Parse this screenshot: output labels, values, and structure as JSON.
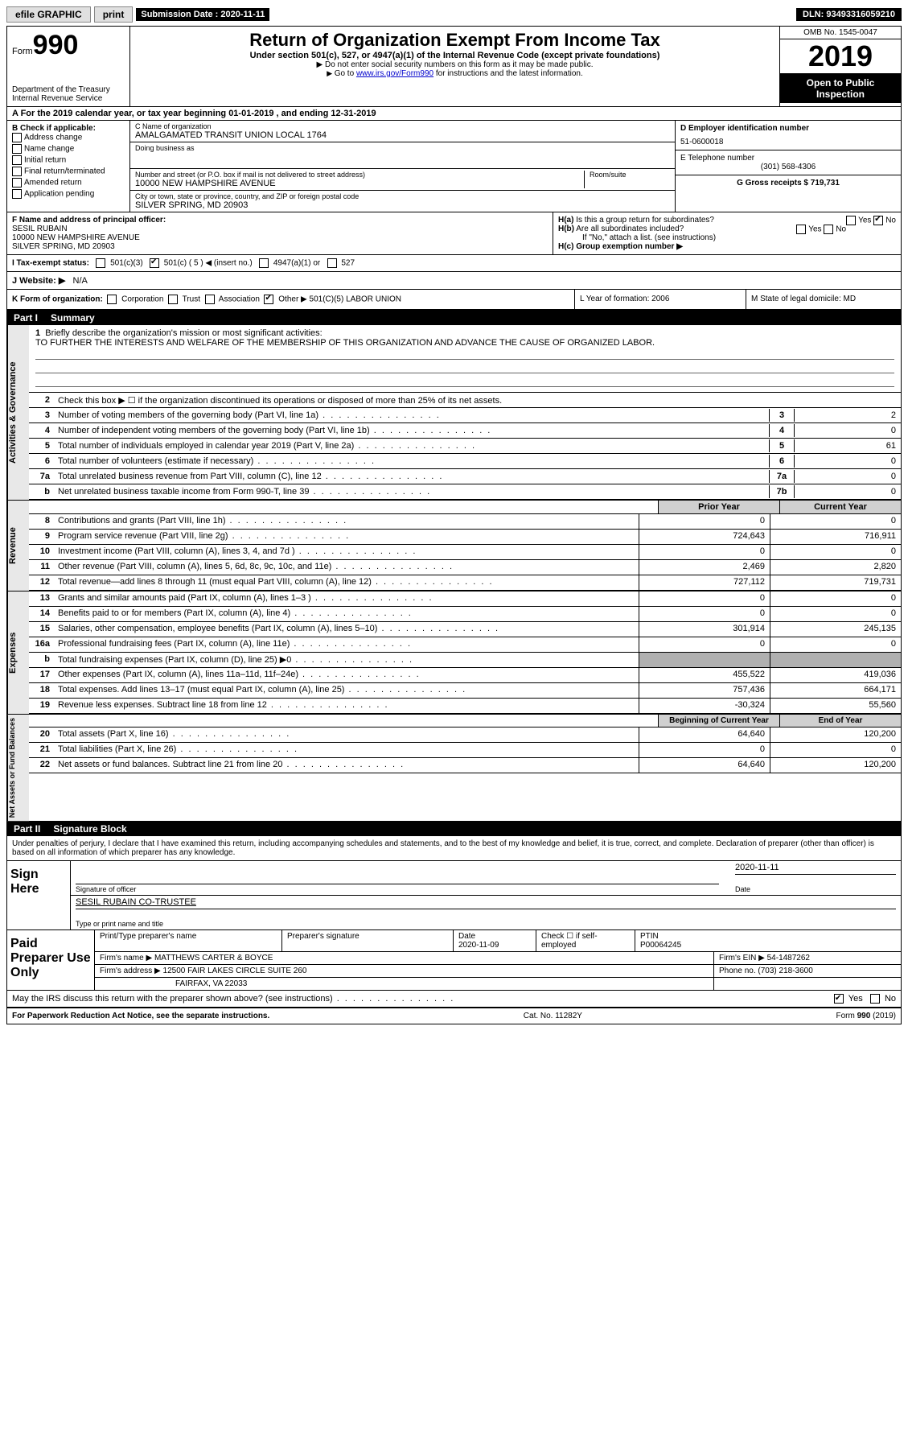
{
  "topbar": {
    "efile": "efile GRAPHIC",
    "print": "print",
    "submission_label": "Submission Date : 2020-11-11",
    "dln_label": "DLN: 93493316059210"
  },
  "header": {
    "form_word": "Form",
    "form_num": "990",
    "dept": "Department of the Treasury\nInternal Revenue Service",
    "title": "Return of Organization Exempt From Income Tax",
    "sub1": "Under section 501(c), 527, or 4947(a)(1) of the Internal Revenue Code (except private foundations)",
    "sub2a": "▶ Do not enter social security numbers on this form as it may be made public.",
    "sub2b": "▶ Go to www.irs.gov/Form990 for instructions and the latest information.",
    "omb": "OMB No. 1545-0047",
    "year": "2019",
    "opi": "Open to Public Inspection"
  },
  "row_a": "A For the 2019 calendar year, or tax year beginning 01-01-2019     , and ending 12-31-2019",
  "col_b": {
    "label": "B Check if applicable:",
    "items": [
      "Address change",
      "Name change",
      "Initial return",
      "Final return/terminated",
      "Amended return",
      "Application pending"
    ]
  },
  "org": {
    "name_label": "C Name of organization",
    "name": "AMALGAMATED TRANSIT UNION LOCAL 1764",
    "dba_label": "Doing business as",
    "dba": "",
    "addr_label": "Number and street (or P.O. box if mail is not delivered to street address)",
    "addr": "10000 NEW HAMPSHIRE AVENUE",
    "room_label": "Room/suite",
    "city_label": "City or town, state or province, country, and ZIP or foreign postal code",
    "city": "SILVER SPRING, MD  20903"
  },
  "right_col": {
    "ein_label": "D Employer identification number",
    "ein": "51-0600018",
    "tel_label": "E Telephone number",
    "tel": "(301) 568-4306",
    "gross_label": "G Gross receipts $",
    "gross": "719,731"
  },
  "officer": {
    "label": "F  Name and address of principal officer:",
    "name": "SESIL RUBAIN",
    "addr1": "10000 NEW HAMPSHIRE AVENUE",
    "addr2": "SILVER SPRING, MD  20903"
  },
  "h_block": {
    "ha": "H(a)  Is this a group return for subordinates?",
    "ha_yes": "Yes",
    "ha_no": "No",
    "hb": "H(b)  Are all subordinates included?",
    "hb_yes": "Yes",
    "hb_no": "No",
    "hb_note": "If \"No,\" attach a list. (see instructions)",
    "hc": "H(c)  Group exemption number ▶"
  },
  "tax_status": {
    "label": "I   Tax-exempt status:",
    "opt1": "501(c)(3)",
    "opt2": "501(c) ( 5 ) ◀ (insert no.)",
    "opt3": "4947(a)(1) or",
    "opt4": "527"
  },
  "website": {
    "label": "J   Website: ▶",
    "value": "N/A"
  },
  "k_row": {
    "k": "K Form of organization:",
    "corp": "Corporation",
    "trust": "Trust",
    "assoc": "Association",
    "other": "Other ▶",
    "other_val": "501(C)(5) LABOR UNION",
    "l": "L Year of formation: 2006",
    "m": "M State of legal domicile: MD"
  },
  "part1": {
    "pn": "Part I",
    "title": "Summary"
  },
  "mission": {
    "n": "1",
    "label": "Briefly describe the organization's mission or most significant activities:",
    "text": "TO FURTHER THE INTERESTS AND WELFARE OF THE MEMBERSHIP OF THIS ORGANIZATION AND ADVANCE THE CAUSE OF ORGANIZED LABOR."
  },
  "gov_rows": [
    {
      "n": "2",
      "desc": "Check this box ▶ ☐  if the organization discontinued its operations or disposed of more than 25% of its net assets.",
      "box": "",
      "val": ""
    },
    {
      "n": "3",
      "desc": "Number of voting members of the governing body (Part VI, line 1a)",
      "box": "3",
      "val": "2"
    },
    {
      "n": "4",
      "desc": "Number of independent voting members of the governing body (Part VI, line 1b)",
      "box": "4",
      "val": "0"
    },
    {
      "n": "5",
      "desc": "Total number of individuals employed in calendar year 2019 (Part V, line 2a)",
      "box": "5",
      "val": "61"
    },
    {
      "n": "6",
      "desc": "Total number of volunteers (estimate if necessary)",
      "box": "6",
      "val": "0"
    },
    {
      "n": "7a",
      "desc": "Total unrelated business revenue from Part VIII, column (C), line 12",
      "box": "7a",
      "val": "0"
    },
    {
      "n": "b",
      "desc": "Net unrelated business taxable income from Form 990-T, line 39",
      "box": "7b",
      "val": "0"
    }
  ],
  "fin_headers": {
    "c1": "Prior Year",
    "c2": "Current Year"
  },
  "revenue_rows": [
    {
      "n": "8",
      "desc": "Contributions and grants (Part VIII, line 1h)",
      "c1": "0",
      "c2": "0"
    },
    {
      "n": "9",
      "desc": "Program service revenue (Part VIII, line 2g)",
      "c1": "724,643",
      "c2": "716,911"
    },
    {
      "n": "10",
      "desc": "Investment income (Part VIII, column (A), lines 3, 4, and 7d )",
      "c1": "0",
      "c2": "0"
    },
    {
      "n": "11",
      "desc": "Other revenue (Part VIII, column (A), lines 5, 6d, 8c, 9c, 10c, and 11e)",
      "c1": "2,469",
      "c2": "2,820"
    },
    {
      "n": "12",
      "desc": "Total revenue—add lines 8 through 11 (must equal Part VIII, column (A), line 12)",
      "c1": "727,112",
      "c2": "719,731"
    }
  ],
  "expense_rows": [
    {
      "n": "13",
      "desc": "Grants and similar amounts paid (Part IX, column (A), lines 1–3 )",
      "c1": "0",
      "c2": "0"
    },
    {
      "n": "14",
      "desc": "Benefits paid to or for members (Part IX, column (A), line 4)",
      "c1": "0",
      "c2": "0"
    },
    {
      "n": "15",
      "desc": "Salaries, other compensation, employee benefits (Part IX, column (A), lines 5–10)",
      "c1": "301,914",
      "c2": "245,135"
    },
    {
      "n": "16a",
      "desc": "Professional fundraising fees (Part IX, column (A), line 11e)",
      "c1": "0",
      "c2": "0"
    },
    {
      "n": "b",
      "desc": "Total fundraising expenses (Part IX, column (D), line 25) ▶0",
      "c1": "SHADED",
      "c2": "SHADED"
    },
    {
      "n": "17",
      "desc": "Other expenses (Part IX, column (A), lines 11a–11d, 11f–24e)",
      "c1": "455,522",
      "c2": "419,036"
    },
    {
      "n": "18",
      "desc": "Total expenses. Add lines 13–17 (must equal Part IX, column (A), line 25)",
      "c1": "757,436",
      "c2": "664,171"
    },
    {
      "n": "19",
      "desc": "Revenue less expenses. Subtract line 18 from line 12",
      "c1": "-30,324",
      "c2": "55,560"
    }
  ],
  "net_headers": {
    "c1": "Beginning of Current Year",
    "c2": "End of Year"
  },
  "net_rows": [
    {
      "n": "20",
      "desc": "Total assets (Part X, line 16)",
      "c1": "64,640",
      "c2": "120,200"
    },
    {
      "n": "21",
      "desc": "Total liabilities (Part X, line 26)",
      "c1": "0",
      "c2": "0"
    },
    {
      "n": "22",
      "desc": "Net assets or fund balances. Subtract line 21 from line 20",
      "c1": "64,640",
      "c2": "120,200"
    }
  ],
  "part2": {
    "pn": "Part II",
    "title": "Signature Block"
  },
  "penalty": "Under penalties of perjury, I declare that I have examined this return, including accompanying schedules and statements, and to the best of my knowledge and belief, it is true, correct, and complete. Declaration of preparer (other than officer) is based on all information of which preparer has any knowledge.",
  "sign": {
    "here": "Sign Here",
    "sig_label": "Signature of officer",
    "date_label": "Date",
    "date": "2020-11-11",
    "printed": "SESIL RUBAIN  CO-TRUSTEE",
    "printed_label": "Type or print name and title"
  },
  "prep": {
    "label": "Paid Preparer Use Only",
    "r1": {
      "a": "Print/Type preparer's name",
      "b": "Preparer's signature",
      "c": "Date",
      "c_val": "2020-11-09",
      "d": "Check ☐ if self-employed",
      "e": "PTIN",
      "e_val": "P00064245"
    },
    "r2": {
      "a": "Firm's name      ▶",
      "a_val": "MATTHEWS CARTER & BOYCE",
      "b": "Firm's EIN ▶",
      "b_val": "54-1487262"
    },
    "r3": {
      "a": "Firm's address ▶",
      "a_val": "12500 FAIR LAKES CIRCLE SUITE 260",
      "b": "Phone no.",
      "b_val": "(703) 218-3600"
    },
    "r3b": "FAIRFAX, VA  22033"
  },
  "irs_discuss": {
    "text": "May the IRS discuss this return with the preparer shown above? (see instructions)",
    "yes": "Yes",
    "no": "No"
  },
  "footer": {
    "left": "For Paperwork Reduction Act Notice, see the separate instructions.",
    "mid": "Cat. No. 11282Y",
    "right": "Form 990 (2019)"
  },
  "side_labels": {
    "gov": "Activities & Governance",
    "rev": "Revenue",
    "exp": "Expenses",
    "net": "Net Assets or Fund Balances"
  }
}
